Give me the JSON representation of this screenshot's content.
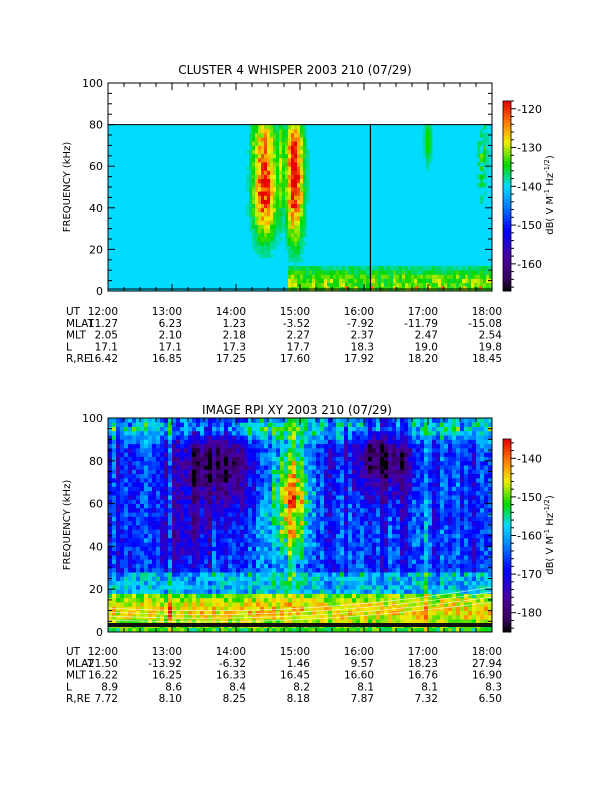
{
  "chart_data": [
    {
      "type": "heatmap",
      "title": "CLUSTER 4 WHISPER 2003 210 (07/29)",
      "ylabel": "FREQUENCY (kHz)",
      "ylim": [
        0,
        100
      ],
      "y_ticks": [
        "0",
        "20",
        "40",
        "60",
        "80",
        "100"
      ],
      "data_max_khz": 80,
      "xlim_hours": [
        12,
        18
      ],
      "colorbar": {
        "label": "dB( V M^-1 Hz^-1/2 )",
        "label_main": "dB( V M",
        "label_sup1": "-1",
        "label_mid": " Hz",
        "label_sup2": "-1/2",
        "label_end": ")",
        "range": [
          -167,
          -118
        ],
        "ticks": [
          "-120",
          "-130",
          "-140",
          "-150",
          "-160"
        ],
        "tick_values": [
          -120,
          -130,
          -140,
          -150,
          -160
        ]
      },
      "marker_line_hour": 16.1,
      "ephemeris": {
        "rows": [
          {
            "label": "UT",
            "values": [
              "12:00",
              "13:00",
              "14:00",
              "15:00",
              "16:00",
              "17:00",
              "18:00"
            ]
          },
          {
            "label": "MLAT",
            "values": [
              "11.27",
              "6.23",
              "1.23",
              "-3.52",
              "-7.92",
              "-11.79",
              "-15.08"
            ]
          },
          {
            "label": "MLT",
            "values": [
              "2.05",
              "2.10",
              "2.18",
              "2.27",
              "2.37",
              "2.47",
              "2.54"
            ]
          },
          {
            "label": "L",
            "values": [
              "17.1",
              "17.1",
              "17.3",
              "17.7",
              "18.3",
              "19.0",
              "19.8"
            ]
          },
          {
            "label": "R,RE",
            "values": [
              "16.42",
              "16.85",
              "17.25",
              "17.60",
              "17.92",
              "18.20",
              "18.45"
            ]
          }
        ]
      }
    },
    {
      "type": "heatmap",
      "title": "IMAGE RPI XY 2003 210 (07/29)",
      "ylabel": "FREQUENCY (kHz)",
      "ylim": [
        0,
        100
      ],
      "y_ticks": [
        "0",
        "20",
        "40",
        "60",
        "80",
        "100"
      ],
      "data_max_khz": 100,
      "xlim_hours": [
        12,
        18
      ],
      "colorbar": {
        "label": "dB( V M^-1 Hz^-1/2 )",
        "label_main": "dB( V M",
        "label_sup1": "-1",
        "label_mid": " Hz",
        "label_sup2": "-1/2",
        "label_end": ")",
        "range": [
          -185,
          -135
        ],
        "ticks": [
          "-140",
          "-150",
          "-160",
          "-170",
          "-180"
        ],
        "tick_values": [
          -140,
          -150,
          -160,
          -170,
          -180
        ]
      },
      "ephemeris": {
        "rows": [
          {
            "label": "UT",
            "values": [
              "12:00",
              "13:00",
              "14:00",
              "15:00",
              "16:00",
              "17:00",
              "18:00"
            ]
          },
          {
            "label": "MLAT",
            "values": [
              "-21.50",
              "-13.92",
              "-6.32",
              "1.46",
              "9.57",
              "18.23",
              "27.94"
            ]
          },
          {
            "label": "MLT",
            "values": [
              "16.22",
              "16.25",
              "16.33",
              "16.45",
              "16.60",
              "16.76",
              "16.90"
            ]
          },
          {
            "label": "L",
            "values": [
              "8.9",
              "8.6",
              "8.4",
              "8.2",
              "8.1",
              "8.1",
              "8.3"
            ]
          },
          {
            "label": "R,RE",
            "values": [
              "7.72",
              "8.10",
              "8.25",
              "8.18",
              "7.87",
              "7.32",
              "6.50"
            ]
          }
        ]
      }
    }
  ]
}
